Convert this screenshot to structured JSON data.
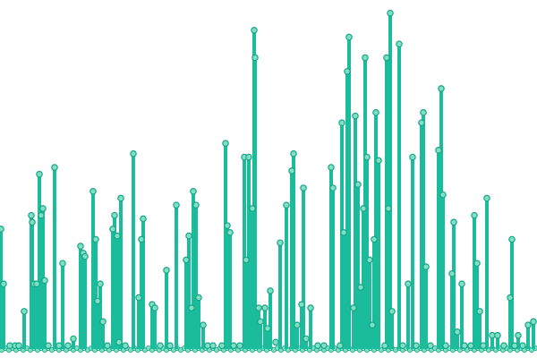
{
  "chart_data": {
    "type": "scatter",
    "style": "lollipop",
    "title": "",
    "xlabel": "",
    "ylabel": "",
    "grid": false,
    "legend": "none",
    "colors": {
      "stem": "#1abc9c",
      "marker_fill": "#7fe0c4",
      "marker_stroke": "#17a589"
    },
    "ylim": [
      0,
      100
    ],
    "xlim": [
      0,
      600
    ],
    "series": [
      {
        "points": [
          [
            1,
            35
          ],
          [
            4,
            19
          ],
          [
            11,
            1
          ],
          [
            17,
            1
          ],
          [
            21,
            1
          ],
          [
            27,
            11
          ],
          [
            35,
            39
          ],
          [
            36,
            37
          ],
          [
            38,
            19
          ],
          [
            41,
            19
          ],
          [
            44,
            51
          ],
          [
            46,
            39
          ],
          [
            48,
            41
          ],
          [
            50,
            20
          ],
          [
            54,
            1
          ],
          [
            61,
            53
          ],
          [
            66,
            1
          ],
          [
            70,
            25
          ],
          [
            76,
            1
          ],
          [
            82,
            3
          ],
          [
            90,
            30
          ],
          [
            93,
            28
          ],
          [
            95,
            27
          ],
          [
            104,
            46
          ],
          [
            107,
            32
          ],
          [
            109,
            14
          ],
          [
            112,
            19
          ],
          [
            115,
            8
          ],
          [
            120,
            1
          ],
          [
            126,
            35
          ],
          [
            128,
            39
          ],
          [
            131,
            33
          ],
          [
            133,
            2
          ],
          [
            135,
            44
          ],
          [
            140,
            1
          ],
          [
            149,
            57
          ],
          [
            155,
            15
          ],
          [
            158,
            32
          ],
          [
            160,
            38
          ],
          [
            170,
            13
          ],
          [
            173,
            12
          ],
          [
            179,
            1
          ],
          [
            186,
            23
          ],
          [
            190,
            1
          ],
          [
            197,
            42
          ],
          [
            208,
            26
          ],
          [
            211,
            33
          ],
          [
            214,
            12
          ],
          [
            216,
            46
          ],
          [
            219,
            42
          ],
          [
            222,
            15
          ],
          [
            227,
            7
          ],
          [
            232,
            1
          ],
          [
            238,
            1
          ],
          [
            248,
            1
          ],
          [
            252,
            60
          ],
          [
            254,
            36
          ],
          [
            257,
            34
          ],
          [
            261,
            1
          ],
          [
            268,
            1
          ],
          [
            273,
            56
          ],
          [
            275,
            26
          ],
          [
            278,
            56
          ],
          [
            282,
            41
          ],
          [
            284,
            93
          ],
          [
            285,
            85
          ],
          [
            289,
            12
          ],
          [
            291,
            8
          ],
          [
            296,
            12
          ],
          [
            299,
            6
          ],
          [
            302,
            17
          ],
          [
            308,
            2
          ],
          [
            313,
            31
          ],
          [
            320,
            42
          ],
          [
            326,
            52
          ],
          [
            328,
            57
          ],
          [
            332,
            7
          ],
          [
            337,
            13
          ],
          [
            339,
            47
          ],
          [
            342,
            3
          ],
          [
            347,
            12
          ],
          [
            355,
            1
          ],
          [
            362,
            1
          ],
          [
            370,
            53
          ],
          [
            372,
            47
          ],
          [
            380,
            1
          ],
          [
            382,
            66
          ],
          [
            384,
            34
          ],
          [
            388,
            81
          ],
          [
            390,
            91
          ],
          [
            395,
            12
          ],
          [
            397,
            68
          ],
          [
            400,
            48
          ],
          [
            403,
            18
          ],
          [
            406,
            41
          ],
          [
            408,
            85
          ],
          [
            410,
            56
          ],
          [
            413,
            26
          ],
          [
            416,
            7
          ],
          [
            418,
            32
          ],
          [
            420,
            69
          ],
          [
            423,
            55
          ],
          [
            430,
            1
          ],
          [
            432,
            85
          ],
          [
            434,
            41
          ],
          [
            436,
            98
          ],
          [
            438,
            11
          ],
          [
            446,
            89
          ],
          [
            450,
            1
          ],
          [
            456,
            19
          ],
          [
            461,
            56
          ],
          [
            465,
            1
          ],
          [
            471,
            66
          ],
          [
            473,
            69
          ],
          [
            476,
            24
          ],
          [
            481,
            1
          ],
          [
            490,
            58
          ],
          [
            493,
            76
          ],
          [
            495,
            45
          ],
          [
            498,
            1
          ],
          [
            505,
            22
          ],
          [
            507,
            37
          ],
          [
            511,
            5
          ],
          [
            516,
            19
          ],
          [
            519,
            1
          ],
          [
            526,
            1
          ],
          [
            530,
            39
          ],
          [
            533,
            25
          ],
          [
            536,
            11
          ],
          [
            540,
            1
          ],
          [
            544,
            44
          ],
          [
            550,
            4
          ],
          [
            556,
            4
          ],
          [
            563,
            1
          ],
          [
            570,
            15
          ],
          [
            572,
            32
          ],
          [
            575,
            1
          ],
          [
            579,
            4
          ],
          [
            584,
            1
          ],
          [
            590,
            7
          ],
          [
            596,
            8
          ]
        ]
      }
    ]
  }
}
